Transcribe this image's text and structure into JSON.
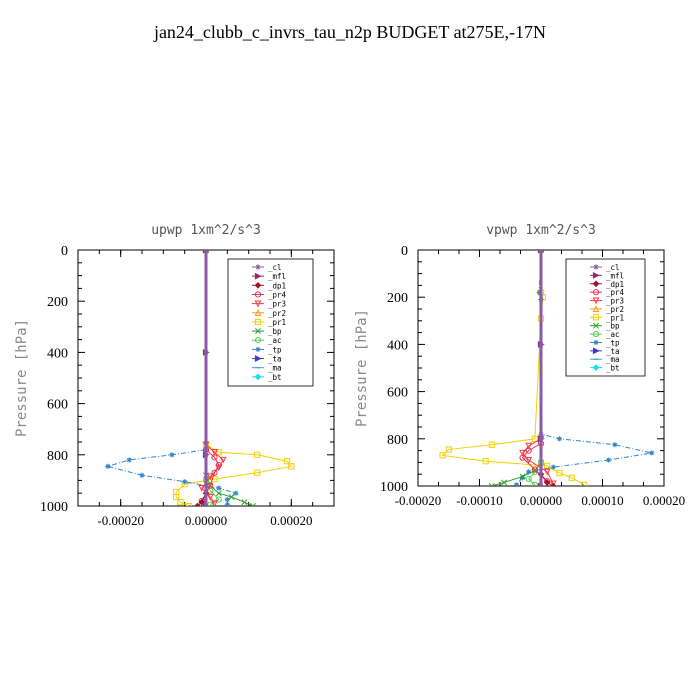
{
  "page": {
    "title": "jan24_clubb_c_invrs_tau_n2p  BUDGET at275E,-17N"
  },
  "legend_entries": [
    {
      "name": "_cl",
      "color": "#8a5aa8",
      "marker": "star"
    },
    {
      "name": "_mfl",
      "color": "#8b2f6b",
      "marker": "triangle-right"
    },
    {
      "name": "_dp1",
      "color": "#a0142a",
      "marker": "diamond"
    },
    {
      "name": "_pr4",
      "color": "#e0305a",
      "marker": "circle"
    },
    {
      "name": "_pr3",
      "color": "#ff3b3b",
      "marker": "triangle-down"
    },
    {
      "name": "_pr2",
      "color": "#ff9a1a",
      "marker": "triangle-up"
    },
    {
      "name": "_pr1",
      "color": "#f4d000",
      "marker": "square"
    },
    {
      "name": "_bp",
      "color": "#2e9e2e",
      "marker": "x"
    },
    {
      "name": "_ac",
      "color": "#52d052",
      "marker": "circle"
    },
    {
      "name": "_tp",
      "color": "#2f86c8",
      "marker": "star"
    },
    {
      "name": "_ta",
      "color": "#3a3ad0",
      "marker": "triangle-right"
    },
    {
      "name": "_ma",
      "color": "#4a9ce0",
      "marker": "dash"
    },
    {
      "name": "_bt",
      "color": "#10e0f0",
      "marker": "diamond"
    }
  ],
  "chart_data": [
    {
      "type": "line",
      "title": "upwp   1xm^2/s^3",
      "xlabel": "",
      "ylabel": "Pressure [hPa]",
      "xlim": [
        -0.0003,
        0.0003
      ],
      "ylim": [
        1000,
        0
      ],
      "xticks": [
        -0.0002,
        0.0,
        0.0002
      ],
      "xtick_labels": [
        "-0.00020",
        "0.00000",
        "0.00020"
      ],
      "yticks": [
        0,
        200,
        400,
        600,
        800,
        1000
      ],
      "ytick_labels": [
        "0",
        "200",
        "400",
        "600",
        "800",
        "1000"
      ],
      "legend_position": "top-right",
      "series": [
        {
          "name": "_pr1",
          "x": [
            0,
            0,
            3e-05,
            0.00012,
            0.00019,
            0.0002,
            0.00012,
            2e-05,
            -5e-05,
            -7e-05,
            -7e-05,
            -6e-05,
            -4e-05
          ],
          "y": [
            0,
            760,
            790,
            800,
            825,
            845,
            870,
            895,
            915,
            945,
            965,
            985,
            1000
          ]
        },
        {
          "name": "_tp",
          "x": [
            0,
            0,
            -8e-05,
            -0.00018,
            -0.00023,
            -0.00015,
            -5e-05,
            3e-05,
            7e-05,
            5e-05,
            5e-05
          ],
          "y": [
            0,
            780,
            800,
            820,
            845,
            880,
            905,
            930,
            950,
            975,
            995
          ]
        },
        {
          "name": "_bp",
          "x": [
            0,
            0,
            1e-05,
            3e-05,
            6e-05,
            9e-05,
            0.00011
          ],
          "y": [
            0,
            880,
            920,
            950,
            965,
            985,
            1000
          ]
        },
        {
          "name": "_ac",
          "x": [
            0,
            0,
            1e-05,
            3e-05,
            1e-05
          ],
          "y": [
            0,
            900,
            940,
            975,
            995
          ]
        },
        {
          "name": "_pr3",
          "x": [
            0,
            0,
            2e-05,
            4e-05,
            3e-05,
            1e-05,
            -1e-05,
            1e-05,
            2e-05
          ],
          "y": [
            0,
            760,
            790,
            820,
            850,
            885,
            930,
            965,
            990
          ]
        },
        {
          "name": "_pr4",
          "x": [
            0,
            0,
            2e-05,
            3e-05,
            2e-05,
            1e-05,
            -1e-05
          ],
          "y": [
            0,
            780,
            810,
            840,
            870,
            920,
            980
          ]
        },
        {
          "name": "_dp1",
          "x": [
            0,
            0,
            -1e-05,
            -2e-05
          ],
          "y": [
            0,
            950,
            985,
            1000
          ]
        },
        {
          "name": "_mfl",
          "x": [
            0,
            0,
            0,
            0
          ],
          "y": [
            0,
            400,
            800,
            1000
          ]
        },
        {
          "name": "_cl",
          "x": [
            0,
            0,
            0,
            0
          ],
          "y": [
            0,
            400,
            800,
            1000
          ]
        }
      ]
    },
    {
      "type": "line",
      "title": "vpwp   1xm^2/s^3",
      "xlabel": "",
      "ylabel": "Pressure [hPa]",
      "xlim": [
        -0.0002,
        0.0002
      ],
      "ylim": [
        1000,
        0
      ],
      "xticks": [
        -0.0002,
        -0.0001,
        0.0,
        0.0001,
        0.0002
      ],
      "xtick_labels": [
        "-0.00020",
        "-0.00010",
        "0.00000",
        "0.00010",
        "0.00020"
      ],
      "yticks": [
        0,
        200,
        400,
        600,
        800,
        1000
      ],
      "ytick_labels": [
        "0",
        "200",
        "400",
        "600",
        "800",
        "1000"
      ],
      "legend_position": "top-right",
      "series": [
        {
          "name": "_pr1",
          "x": [
            0,
            0,
            3e-06,
            0,
            -1e-05,
            -8e-05,
            -0.00015,
            -0.00016,
            -9e-05,
            1e-05,
            3e-05,
            5e-05,
            7e-05
          ],
          "y": [
            0,
            180,
            200,
            290,
            800,
            825,
            845,
            870,
            895,
            915,
            945,
            965,
            995
          ]
        },
        {
          "name": "_tp",
          "x": [
            0,
            -3e-06,
            0,
            0,
            3e-05,
            0.00012,
            0.00018,
            0.00011,
            2e-05,
            -2e-05,
            -3e-05,
            -4e-05
          ],
          "y": [
            0,
            180,
            210,
            780,
            800,
            825,
            860,
            890,
            920,
            940,
            965,
            995
          ]
        },
        {
          "name": "_bp",
          "x": [
            0,
            0,
            -1e-05,
            -3e-05,
            -6e-05,
            -8e-05
          ],
          "y": [
            0,
            900,
            935,
            960,
            985,
            1000
          ]
        },
        {
          "name": "_ac",
          "x": [
            0,
            0,
            -1e-05,
            -2e-05,
            -1e-05
          ],
          "y": [
            0,
            900,
            940,
            970,
            995
          ]
        },
        {
          "name": "_pr3",
          "x": [
            0,
            0,
            -2e-05,
            -3e-05,
            -2e-05,
            1e-05,
            2e-05
          ],
          "y": [
            0,
            800,
            830,
            860,
            890,
            940,
            990
          ]
        },
        {
          "name": "_pr4",
          "x": [
            0,
            0,
            -2e-05,
            -3e-05,
            -1e-05,
            1e-05
          ],
          "y": [
            0,
            820,
            850,
            880,
            930,
            980
          ]
        },
        {
          "name": "_dp1",
          "x": [
            0,
            0,
            1e-05,
            2e-05
          ],
          "y": [
            0,
            950,
            985,
            1000
          ]
        },
        {
          "name": "_mfl",
          "x": [
            0,
            0,
            0,
            0
          ],
          "y": [
            0,
            400,
            800,
            1000
          ]
        },
        {
          "name": "_cl",
          "x": [
            0,
            0,
            0,
            0
          ],
          "y": [
            0,
            400,
            800,
            1000
          ]
        }
      ]
    }
  ]
}
